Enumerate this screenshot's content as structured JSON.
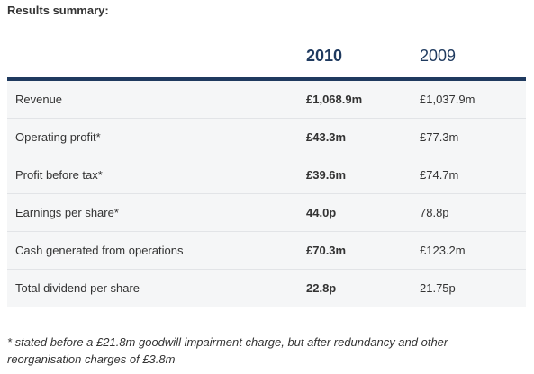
{
  "title": "Results summary:",
  "columns": {
    "current": "2010",
    "previous": "2009"
  },
  "rows": [
    {
      "label": "Revenue",
      "current": "£1,068.9m",
      "previous": "£1,037.9m"
    },
    {
      "label": "Operating profit*",
      "current": "£43.3m",
      "previous": "£77.3m"
    },
    {
      "label": "Profit before tax*",
      "current": "£39.6m",
      "previous": "£74.7m"
    },
    {
      "label": "Earnings per share*",
      "current": "44.0p",
      "previous": "78.8p"
    },
    {
      "label": "Cash generated from operations",
      "current": "£70.3m",
      "previous": "£123.2m"
    },
    {
      "label": "Total dividend per share",
      "current": "22.8p",
      "previous": "21.75p"
    }
  ],
  "footnote": "* stated before a £21.8m goodwill impairment charge, but after redundancy and other reorganisation charges of £3.8m",
  "colors": {
    "accent": "#1f3a5f",
    "row_background": "#f5f6f7",
    "row_divider": "#e2e4e7"
  }
}
